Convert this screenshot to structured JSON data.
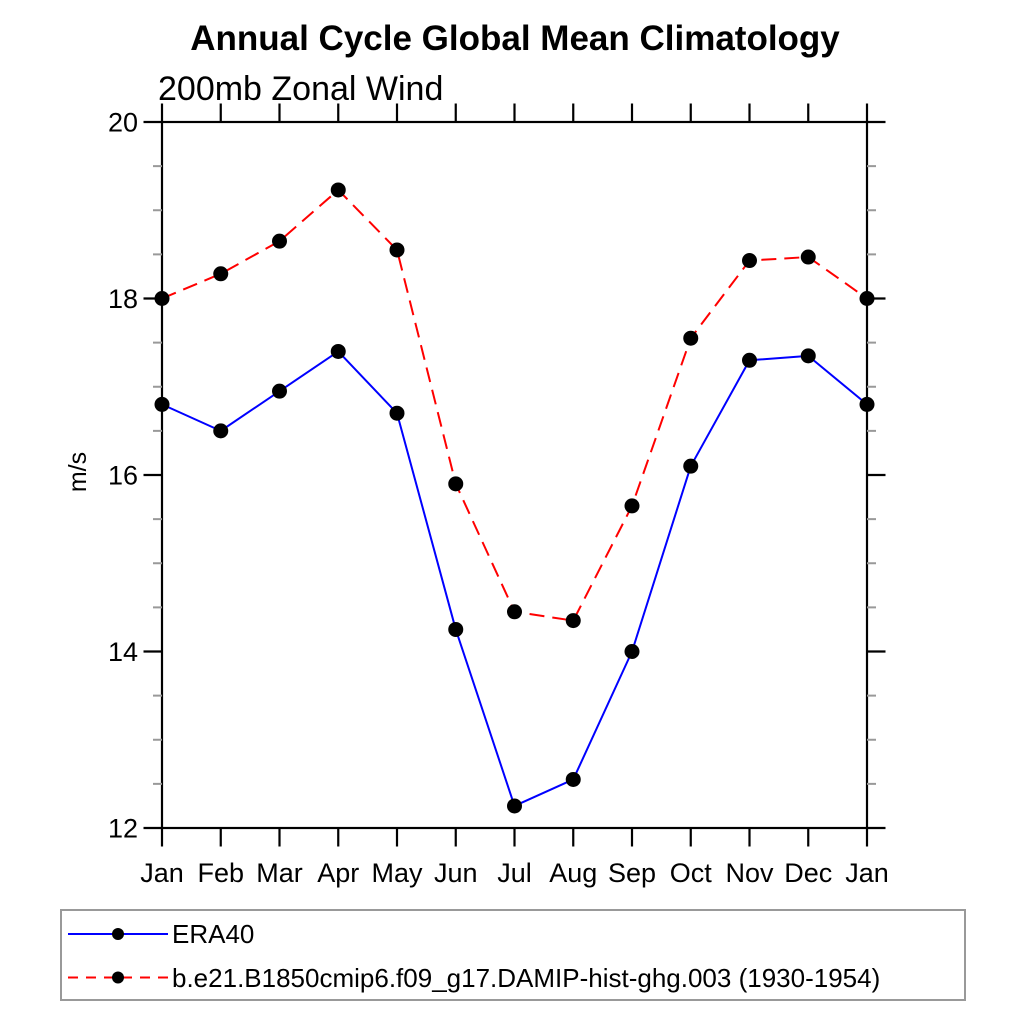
{
  "title": "Annual Cycle Global Mean Climatology",
  "subtitle": "200mb Zonal Wind",
  "chart_data": {
    "type": "line",
    "title": "Annual Cycle Global Mean Climatology",
    "subtitle": "200mb Zonal Wind",
    "xlabel": "",
    "ylabel": "m/s",
    "categories": [
      "Jan",
      "Feb",
      "Mar",
      "Apr",
      "May",
      "Jun",
      "Jul",
      "Aug",
      "Sep",
      "Oct",
      "Nov",
      "Dec",
      "Jan"
    ],
    "ylim": [
      12,
      20
    ],
    "yticks_major": [
      12,
      14,
      16,
      18,
      20
    ],
    "ytick_minor_step": 0.5,
    "grid": false,
    "legend_position": "bottom-left-box",
    "marker": {
      "shape": "circle",
      "color": "#000000"
    },
    "series": [
      {
        "name": "ERA40",
        "color": "#0000ff",
        "line_style": "solid",
        "values": [
          16.8,
          16.5,
          16.95,
          17.4,
          16.7,
          14.25,
          12.25,
          12.55,
          14.0,
          16.1,
          17.3,
          17.35,
          16.8
        ]
      },
      {
        "name": "b.e21.B1850cmip6.f09_g17.DAMIP-hist-ghg.003 (1930-1954)",
        "color": "#ff0000",
        "line_style": "dashed",
        "values": [
          18.0,
          18.28,
          18.65,
          19.23,
          18.55,
          15.9,
          14.45,
          14.35,
          15.65,
          17.55,
          18.43,
          18.47,
          18.0
        ]
      }
    ]
  },
  "colors": {
    "axis": "#000000",
    "minor_tick": "#999999",
    "legend_border": "#999999",
    "series_1": "#0000ff",
    "series_2": "#ff0000",
    "marker": "#000000"
  }
}
